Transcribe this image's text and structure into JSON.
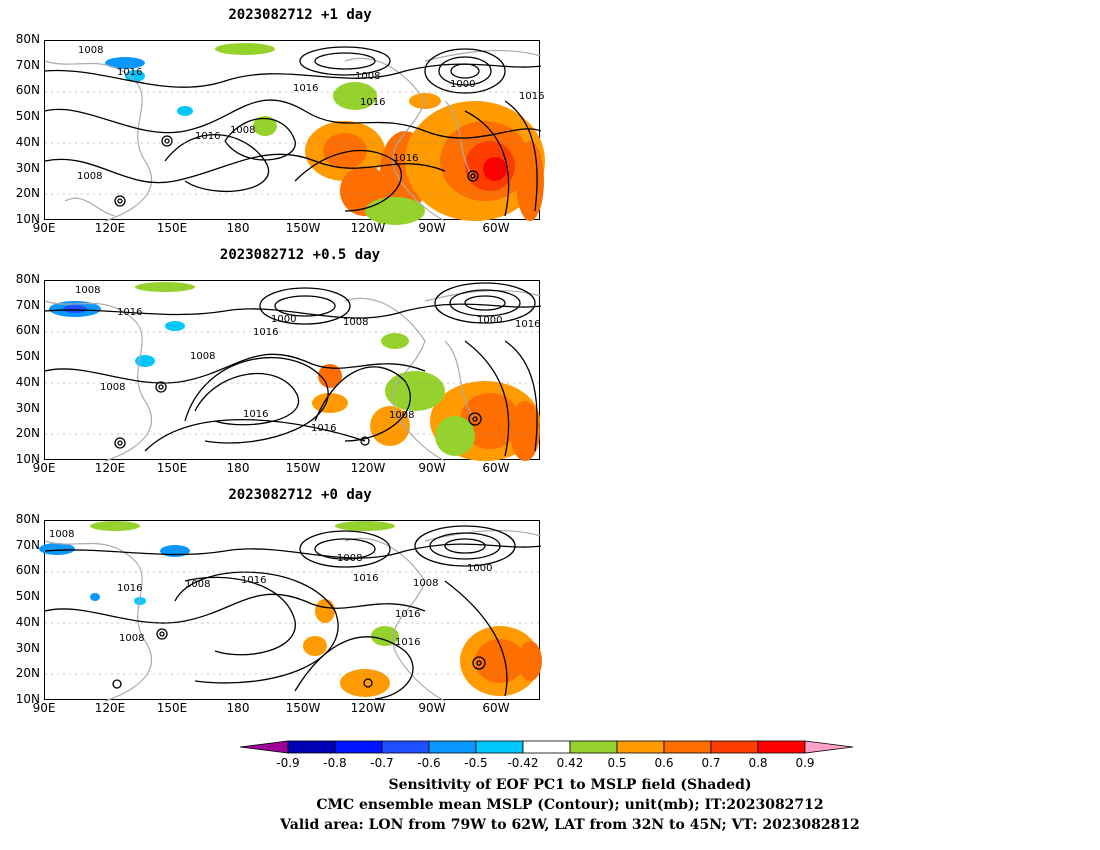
{
  "panels": [
    {
      "title": "2023082712  +1 day",
      "contour_labels": [
        "1008",
        "1016",
        "1016",
        "1008",
        "1016",
        "1000",
        "1016",
        "1016",
        "1008",
        "1016",
        "1008"
      ]
    },
    {
      "title": "2023082712  +0.5 day",
      "contour_labels": [
        "1008",
        "1016",
        "1008",
        "1016",
        "1000",
        "1008",
        "1016",
        "1000",
        "1008",
        "1016",
        "1016",
        "1008"
      ]
    },
    {
      "title": "2023082712  +0 day",
      "contour_labels": [
        "1008",
        "1016",
        "1008",
        "1016",
        "1008",
        "1016",
        "1000",
        "1008",
        "1016",
        "1016",
        "1008"
      ]
    }
  ],
  "lat_ticks": [
    "80N",
    "70N",
    "60N",
    "50N",
    "40N",
    "30N",
    "20N",
    "10N"
  ],
  "lon_ticks": [
    "90E",
    "120E",
    "150E",
    "180",
    "150W",
    "120W",
    "90W",
    "60W"
  ],
  "colorbar": {
    "levels": [
      "-0.9",
      "-0.8",
      "-0.7",
      "-0.6",
      "-0.5",
      "-0.42",
      "0.42",
      "0.5",
      "0.6",
      "0.7",
      "0.8",
      "0.9"
    ],
    "colors": [
      "#a0009a",
      "#0000b4",
      "#0014ff",
      "#1e50ff",
      "#0a96ff",
      "#00c8ff",
      "#ffffff",
      "#96d22d",
      "#ff9b00",
      "#ff6e00",
      "#ff3c00",
      "#ff0000",
      "#ffa0c8"
    ]
  },
  "caption": {
    "line1": "Sensitivity of EOF PC1 to MSLP field (Shaded)",
    "line2": "CMC ensemble mean MSLP (Contour); unit(mb); IT:2023082712",
    "line3": "Valid area: LON from 79W to 62W, LAT from 32N to 45N; VT: 2023082812"
  }
}
